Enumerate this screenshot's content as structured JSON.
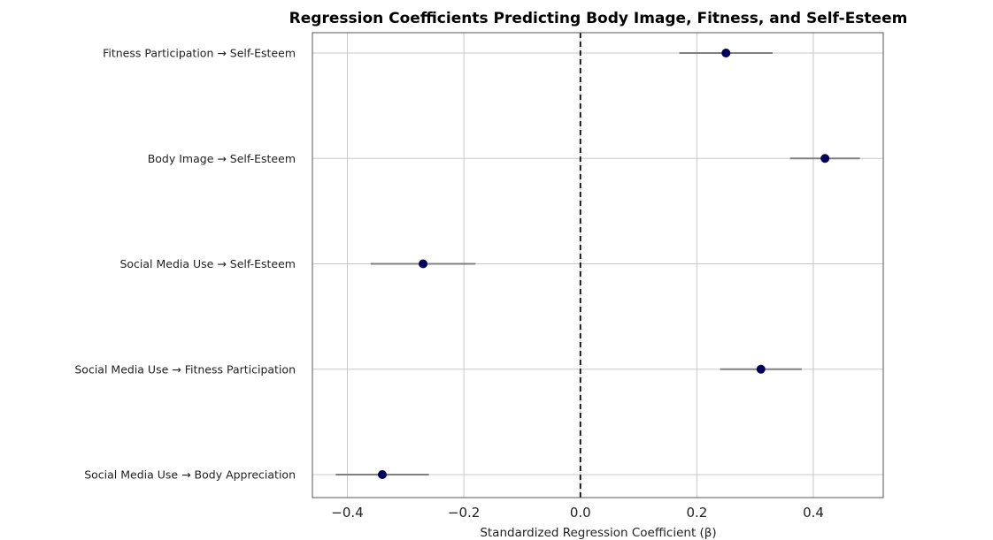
{
  "chart_data": {
    "type": "scatter",
    "title": "Regression Coefficients Predicting Body Image, Fitness, and Self-Esteem",
    "xlabel": "Standardized Regression Coefficient (β)",
    "ylabel": "",
    "xlim": [
      -0.46,
      0.52
    ],
    "xticks": [
      -0.4,
      -0.2,
      0.0,
      0.2,
      0.4
    ],
    "xtick_labels": [
      "−0.4",
      "−0.2",
      "0.0",
      "0.2",
      "0.4"
    ],
    "reference_line": 0.0,
    "grid": true,
    "point_color": "#00005a",
    "errorbar_color": "#808080",
    "reference_line_color": "#000000",
    "categories": [
      "Fitness Participation → Self-Esteem",
      "Body Image → Self-Esteem",
      "Social Media Use → Self-Esteem",
      "Social Media Use → Fitness Participation",
      "Social Media Use → Body Appreciation"
    ],
    "values": [
      0.25,
      0.42,
      -0.27,
      0.31,
      -0.34
    ],
    "ci_low": [
      0.17,
      0.36,
      -0.36,
      0.24,
      -0.42
    ],
    "ci_high": [
      0.33,
      0.48,
      -0.18,
      0.38,
      -0.26
    ]
  }
}
